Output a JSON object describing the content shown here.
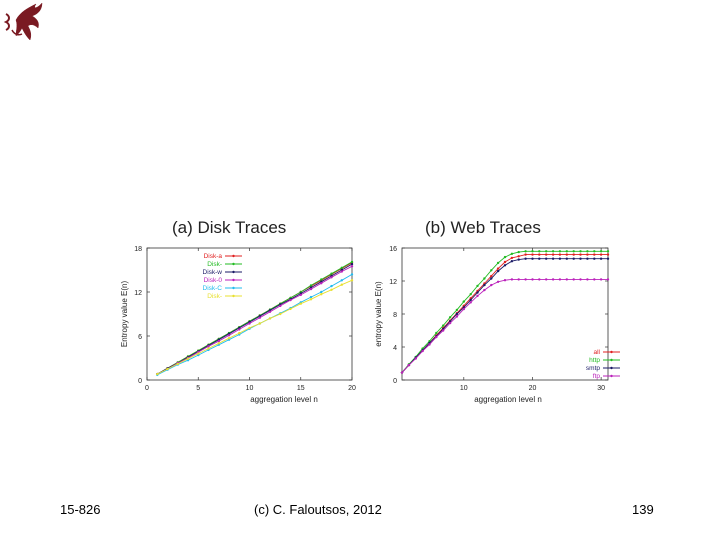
{
  "slide": {
    "course": "15-826",
    "copyright": "(c) C. Faloutsos, 2012",
    "page_number": "139"
  },
  "colors": {
    "logo": "#7a1a22"
  },
  "chart_data": [
    {
      "type": "line",
      "panel_title": "(a) Disk Traces",
      "xlabel": "aggregation level n",
      "ylabel": "Entropy value E(n)",
      "xlim": [
        0,
        20
      ],
      "ylim": [
        0,
        18
      ],
      "xticks": [
        "0",
        "5",
        "10",
        "15",
        "20"
      ],
      "yticks": [
        "0",
        "6",
        "12",
        "18"
      ],
      "x": [
        1,
        2,
        3,
        4,
        5,
        6,
        7,
        8,
        9,
        10,
        11,
        12,
        13,
        14,
        15,
        16,
        17,
        18,
        19,
        20
      ],
      "legend_position": "top-left",
      "series": [
        {
          "name": "Disk-a",
          "color": "#e02020",
          "values": [
            0.8,
            1.6,
            2.4,
            3.2,
            4.0,
            4.8,
            5.6,
            6.4,
            7.2,
            8.0,
            8.8,
            9.6,
            10.4,
            11.2,
            12.0,
            12.8,
            13.6,
            14.4,
            15.2,
            16.0
          ]
        },
        {
          "name": "Disk-",
          "color": "#22bb22",
          "values": [
            0.8,
            1.6,
            2.4,
            3.2,
            4.0,
            4.8,
            5.6,
            6.4,
            7.2,
            8.0,
            8.8,
            9.6,
            10.4,
            11.2,
            12.0,
            12.9,
            13.7,
            14.5,
            15.3,
            16.1
          ]
        },
        {
          "name": "Disk-w",
          "color": "#1a1a66",
          "values": [
            0.8,
            1.6,
            2.3,
            3.1,
            3.9,
            4.7,
            5.5,
            6.3,
            7.1,
            7.9,
            8.7,
            9.5,
            10.3,
            11.0,
            11.8,
            12.6,
            13.4,
            14.2,
            15.0,
            15.8
          ]
        },
        {
          "name": "Disk-0",
          "color": "#bb22bb",
          "values": [
            0.8,
            1.5,
            2.3,
            3.0,
            3.8,
            4.6,
            5.3,
            6.1,
            6.9,
            7.7,
            8.5,
            9.3,
            10.1,
            10.9,
            11.6,
            12.4,
            13.2,
            14.0,
            14.8,
            15.5
          ]
        },
        {
          "name": "Disk-C",
          "color": "#22bbee",
          "values": [
            0.7,
            1.4,
            2.1,
            2.7,
            3.4,
            4.1,
            4.8,
            5.5,
            6.2,
            7.0,
            7.7,
            8.4,
            9.1,
            9.8,
            10.6,
            11.3,
            12.0,
            12.8,
            13.6,
            14.4
          ]
        },
        {
          "name": "Disk-",
          "color": "#e8e030",
          "values": [
            0.8,
            1.5,
            2.2,
            2.9,
            3.6,
            4.3,
            5.0,
            5.7,
            6.4,
            7.1,
            7.7,
            8.4,
            9.0,
            9.7,
            10.4,
            11.0,
            11.7,
            12.3,
            13.0,
            13.6
          ]
        }
      ]
    },
    {
      "type": "line",
      "panel_title": "(b) Web Traces",
      "xlabel": "aggregation level n",
      "ylabel": "entropy value E(n)",
      "xlim": [
        1,
        31
      ],
      "ylim": [
        0,
        16
      ],
      "xticks": [
        "10",
        "20",
        "30"
      ],
      "yticks": [
        "0",
        "4",
        "8",
        "12",
        "16"
      ],
      "x": [
        1,
        2,
        3,
        4,
        5,
        6,
        7,
        8,
        9,
        10,
        11,
        12,
        13,
        14,
        15,
        16,
        17,
        18,
        19,
        20,
        21,
        22,
        23,
        24,
        25,
        26,
        27,
        28,
        29,
        30,
        31
      ],
      "legend_position": "bottom-right",
      "series": [
        {
          "name": "all",
          "color": "#e02020",
          "values": [
            0.9,
            1.8,
            2.7,
            3.6,
            4.5,
            5.4,
            6.3,
            7.2,
            8.1,
            9.0,
            9.9,
            10.8,
            11.7,
            12.6,
            13.5,
            14.3,
            14.8,
            15.0,
            15.2,
            15.2,
            15.2,
            15.2,
            15.2,
            15.2,
            15.2,
            15.2,
            15.2,
            15.2,
            15.2,
            15.2,
            15.2
          ]
        },
        {
          "name": "http",
          "color": "#22bb22",
          "values": [
            0.9,
            1.9,
            2.8,
            3.8,
            4.7,
            5.7,
            6.6,
            7.6,
            8.5,
            9.5,
            10.4,
            11.4,
            12.3,
            13.3,
            14.2,
            14.9,
            15.3,
            15.5,
            15.6,
            15.6,
            15.6,
            15.6,
            15.6,
            15.6,
            15.6,
            15.6,
            15.6,
            15.6,
            15.6,
            15.6,
            15.6
          ]
        },
        {
          "name": "smtp",
          "color": "#1a1a66",
          "values": [
            0.9,
            1.8,
            2.7,
            3.6,
            4.5,
            5.3,
            6.2,
            7.1,
            8.0,
            8.8,
            9.7,
            10.6,
            11.5,
            12.3,
            13.2,
            13.9,
            14.4,
            14.6,
            14.7,
            14.7,
            14.7,
            14.7,
            14.7,
            14.7,
            14.7,
            14.7,
            14.7,
            14.7,
            14.7,
            14.7,
            14.7
          ]
        },
        {
          "name": "ftp",
          "color": "#bb22bb",
          "values": [
            0.9,
            1.8,
            2.6,
            3.5,
            4.3,
            5.2,
            6.0,
            6.9,
            7.7,
            8.6,
            9.4,
            10.2,
            10.9,
            11.5,
            11.9,
            12.1,
            12.2,
            12.2,
            12.2,
            12.2,
            12.2,
            12.2,
            12.2,
            12.2,
            12.2,
            12.2,
            12.2,
            12.2,
            12.2,
            12.2,
            12.2
          ]
        }
      ]
    }
  ]
}
